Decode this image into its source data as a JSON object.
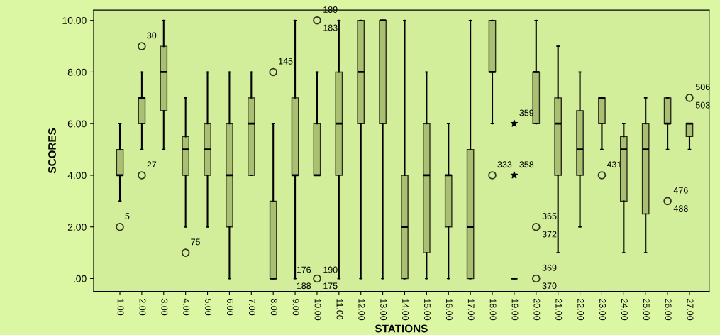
{
  "chart_data": {
    "type": "box",
    "xlabel": "STATIONS",
    "ylabel": "SCORES",
    "color": "#a9bf72",
    "categories": [
      "1.00",
      "2.00",
      "3.00",
      "4.00",
      "5.00",
      "6.00",
      "7.00",
      "8.00",
      "9.00",
      "10.00",
      "11.00",
      "12.00",
      "13.00",
      "14.00",
      "15.00",
      "16.00",
      "17.00",
      "18.00",
      "19.00",
      "20.00",
      "21.00",
      "22.00",
      "23.00",
      "24.00",
      "25.00",
      "26.00",
      "27.00"
    ],
    "boxes": [
      {
        "low": 3,
        "q1": 4,
        "median": 4,
        "q3": 5,
        "high": 6
      },
      {
        "low": 5,
        "q1": 6,
        "median": 7,
        "q3": 7,
        "high": 8
      },
      {
        "low": 5,
        "q1": 6.5,
        "median": 8,
        "q3": 9,
        "high": 10
      },
      {
        "low": 2,
        "q1": 4,
        "median": 5,
        "q3": 5.5,
        "high": 7
      },
      {
        "low": 2,
        "q1": 4,
        "median": 5,
        "q3": 6,
        "high": 8
      },
      {
        "low": 0,
        "q1": 2,
        "median": 4,
        "q3": 6,
        "high": 8
      },
      {
        "low": 4,
        "q1": 4,
        "median": 6,
        "q3": 7,
        "high": 8
      },
      {
        "low": 0,
        "q1": 0,
        "median": 0,
        "q3": 3,
        "high": 6
      },
      {
        "low": 0,
        "q1": 4,
        "median": 4,
        "q3": 7,
        "high": 10
      },
      {
        "low": 4,
        "q1": 4,
        "median": 4,
        "q3": 6,
        "high": 8
      },
      {
        "low": 0,
        "q1": 4,
        "median": 6,
        "q3": 8,
        "high": 10
      },
      {
        "low": 0,
        "q1": 6,
        "median": 8,
        "q3": 10,
        "high": 10
      },
      {
        "low": 0,
        "q1": 6,
        "median": 10,
        "q3": 10,
        "high": 10
      },
      {
        "low": 0,
        "q1": 0,
        "median": 2,
        "q3": 4,
        "high": 10
      },
      {
        "low": 0,
        "q1": 1,
        "median": 4,
        "q3": 6,
        "high": 8
      },
      {
        "low": 0,
        "q1": 2,
        "median": 4,
        "q3": 4,
        "high": 6
      },
      {
        "low": 0,
        "q1": 0,
        "median": 2,
        "q3": 5,
        "high": 10
      },
      {
        "low": 6,
        "q1": 8,
        "median": 8,
        "q3": 10,
        "high": 10
      },
      {
        "low": 0,
        "q1": 0,
        "median": 0,
        "q3": 0,
        "high": 0
      },
      {
        "low": 6,
        "q1": 6,
        "median": 8,
        "q3": 8,
        "high": 10
      },
      {
        "low": 1,
        "q1": 4,
        "median": 6,
        "q3": 7,
        "high": 9
      },
      {
        "low": 2,
        "q1": 4,
        "median": 5,
        "q3": 6.5,
        "high": 8
      },
      {
        "low": 5,
        "q1": 6,
        "median": 7,
        "q3": 7,
        "high": 7
      },
      {
        "low": 1,
        "q1": 3,
        "median": 5,
        "q3": 5.5,
        "high": 6
      },
      {
        "low": 1,
        "q1": 2.5,
        "median": 5,
        "q3": 6,
        "high": 7
      },
      {
        "low": 5,
        "q1": 6,
        "median": 6,
        "q3": 7,
        "high": 7
      },
      {
        "low": 5,
        "q1": 5.5,
        "median": 6,
        "q3": 6,
        "high": 6
      }
    ],
    "series": [
      {
        "type": "scatter",
        "marker": "circle",
        "color": "#333322",
        "x": [
          "1.00",
          "2.00",
          "2.00",
          "4.00",
          "8.00",
          "10.00",
          "10.00",
          "18.00",
          "20.00",
          "20.00",
          "23.00",
          "26.00",
          "27.00"
        ],
        "values": [
          2,
          9,
          4,
          1,
          8,
          10,
          0,
          4,
          2,
          0,
          4,
          3,
          7
        ]
      },
      {
        "type": "scatter",
        "marker": "star",
        "color": "#000000",
        "x": [
          "19.00",
          "19.00"
        ],
        "values": [
          6,
          4
        ]
      }
    ],
    "ylim": [
      -0.5,
      10.4
    ],
    "yticks": [
      {
        "value": 0,
        "label": ".00"
      },
      {
        "value": 2,
        "label": "2.00"
      },
      {
        "value": 4,
        "label": "4.00"
      },
      {
        "value": 6,
        "label": "6.00"
      },
      {
        "value": 8,
        "label": "8.00"
      },
      {
        "value": 10,
        "label": "10.00"
      }
    ],
    "grid": false,
    "legend": false,
    "annotations": [
      {
        "text": "5",
        "x": "1.00",
        "y": 2
      },
      {
        "text": "30",
        "x": "2.00",
        "y": 9
      },
      {
        "text": "27",
        "x": "2.00",
        "y": 4
      },
      {
        "text": "75",
        "x": "4.00",
        "y": 1
      },
      {
        "text": "145",
        "x": "8.00",
        "y": 8
      },
      {
        "text": "189",
        "x": "10.00",
        "y": 10
      },
      {
        "text": "183",
        "x": "10.00",
        "y": 10
      },
      {
        "text": "176",
        "x": "10.00",
        "y": 0
      },
      {
        "text": "190",
        "x": "10.00",
        "y": 0
      },
      {
        "text": "188",
        "x": "10.00",
        "y": 0
      },
      {
        "text": "175",
        "x": "10.00",
        "y": 0
      },
      {
        "text": "333",
        "x": "18.00",
        "y": 4
      },
      {
        "text": "359",
        "x": "19.00",
        "y": 6
      },
      {
        "text": "358",
        "x": "19.00",
        "y": 4
      },
      {
        "text": "365",
        "x": "20.00",
        "y": 2
      },
      {
        "text": "372",
        "x": "20.00",
        "y": 2
      },
      {
        "text": "369",
        "x": "20.00",
        "y": 0
      },
      {
        "text": "370",
        "x": "20.00",
        "y": 0
      },
      {
        "text": "431",
        "x": "23.00",
        "y": 4
      },
      {
        "text": "476",
        "x": "26.00",
        "y": 3
      },
      {
        "text": "488",
        "x": "26.00",
        "y": 3
      },
      {
        "text": "506",
        "x": "27.00",
        "y": 7
      },
      {
        "text": "503",
        "x": "27.00",
        "y": 7
      }
    ]
  }
}
